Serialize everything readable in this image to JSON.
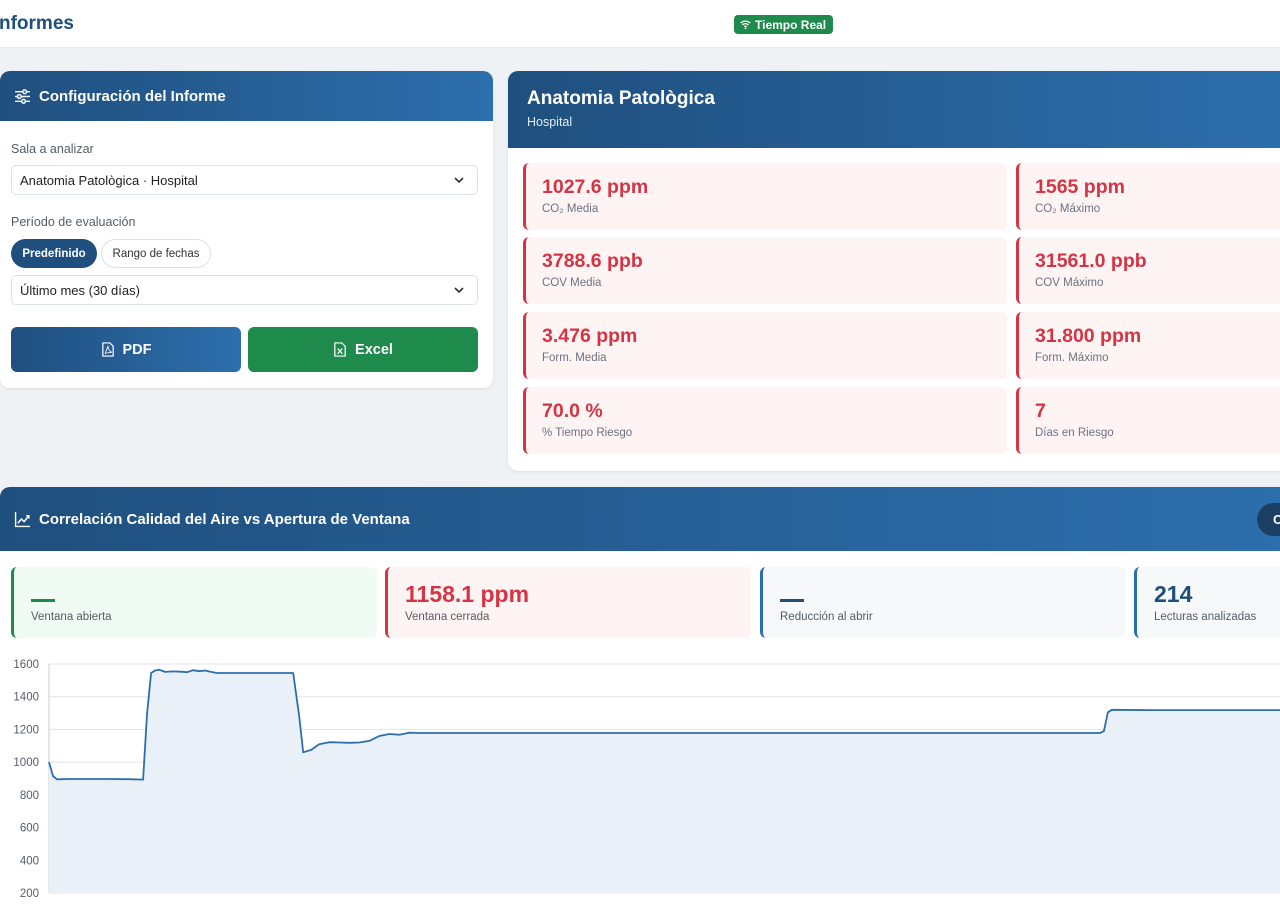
{
  "header": {
    "title": "nformes",
    "realtime_badge": "Tiempo Real"
  },
  "config": {
    "title": "Configuración del Informe",
    "room_label": "Sala a analizar",
    "room_value": "Anatomia Patològica · Hospital",
    "period_label": "Período de evaluación",
    "period_tabs": [
      "Predefinido",
      "Rango de fechas"
    ],
    "period_value": "Último mes (30 días)",
    "pdf_label": "PDF",
    "excel_label": "Excel"
  },
  "room": {
    "name": "Anatomia Patològica",
    "building": "Hospital",
    "metrics": [
      {
        "value": "1027.6 ppm",
        "caption": "CO₂ Media"
      },
      {
        "value": "1565 ppm",
        "caption": "CO₂ Máximo"
      },
      {
        "value": "3788.6 ppb",
        "caption": "COV Media"
      },
      {
        "value": "31561.0 ppb",
        "caption": "COV Máximo"
      },
      {
        "value": "3.476 ppm",
        "caption": "Form. Media"
      },
      {
        "value": "31.800 ppm",
        "caption": "Form. Máximo"
      },
      {
        "value": "70.0 %",
        "caption": "% Tiempo Riesgo"
      },
      {
        "value": "7",
        "caption": "Días en Riesgo"
      }
    ]
  },
  "correlation": {
    "title": "Correlación Calidad del Aire vs Apertura de Ventana",
    "header_pill": "C",
    "stats": [
      {
        "value": "",
        "caption": "Ventana abierta"
      },
      {
        "value": "1158.1 ppm",
        "caption": "Ventana cerrada"
      },
      {
        "value": "",
        "caption": "Reducción al abrir"
      },
      {
        "value": "214",
        "caption": "Lecturas analizadas"
      }
    ]
  },
  "colors": {
    "primary": "#1f4f7e",
    "accent": "#2d6fad",
    "success": "#1e8a4c",
    "danger": "#d43443"
  },
  "chart_data": {
    "type": "area",
    "ylim": [
      200,
      1600
    ],
    "yticks": [
      1600,
      1400,
      1200,
      1000,
      800,
      600,
      400,
      200
    ],
    "grid": true,
    "series": [
      {
        "x": [
          0,
          4,
          8,
          20,
          40,
          60,
          80,
          94,
          98,
          102,
          106,
          110,
          116,
          124,
          132,
          138,
          144,
          150,
          156,
          162,
          168,
          180,
          200,
          220,
          244,
          250,
          254,
          262,
          270,
          280,
          290,
          300,
          310,
          320,
          330,
          340,
          350,
          360,
          370,
          380,
          400,
          500,
          600,
          700,
          800,
          900,
          1000,
          1050,
          1054,
          1058,
          1062,
          1100,
          1200,
          1230
        ],
        "values": [
          1000,
          915,
          895,
          897,
          897,
          897,
          896,
          893,
          1300,
          1545,
          1560,
          1565,
          1552,
          1555,
          1553,
          1550,
          1562,
          1556,
          1560,
          1552,
          1545,
          1545,
          1545,
          1545,
          1545,
          1280,
          1060,
          1075,
          1110,
          1122,
          1120,
          1118,
          1120,
          1130,
          1160,
          1172,
          1168,
          1180,
          1178,
          1178,
          1178,
          1178,
          1178,
          1178,
          1178,
          1178,
          1178,
          1178,
          1190,
          1305,
          1320,
          1318,
          1318,
          1318
        ]
      }
    ]
  }
}
